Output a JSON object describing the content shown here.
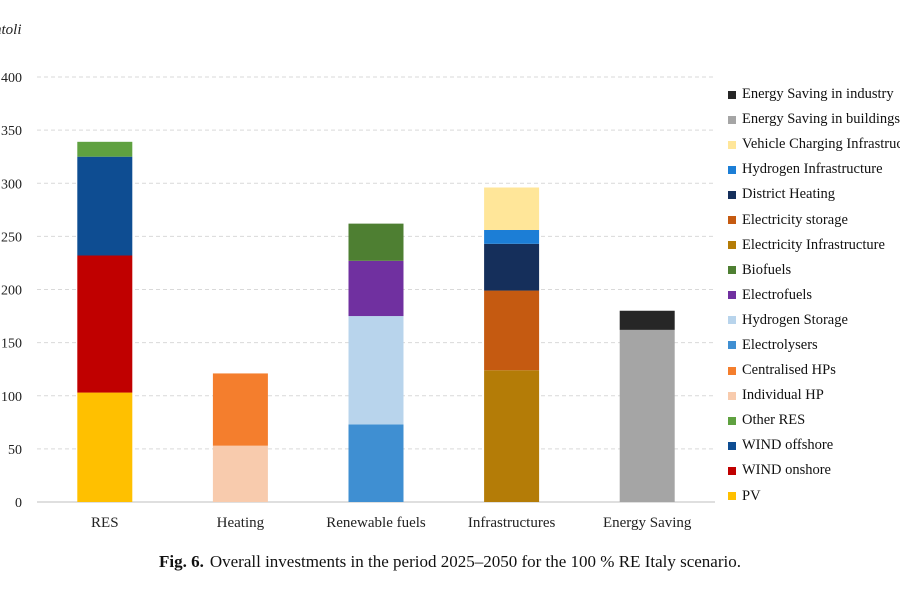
{
  "chart_data": {
    "type": "bar",
    "stacked": true,
    "ylabel": "ntoli",
    "ylim": [
      0,
      400
    ],
    "yticks": [
      0,
      50,
      100,
      150,
      200,
      250,
      300,
      350,
      400
    ],
    "grid": true,
    "legend_position": "right",
    "categories": [
      "RES",
      "Heating",
      "Renewable fuels",
      "Infrastructures",
      "Energy Saving"
    ],
    "series": [
      {
        "name": "PV",
        "color": "#FFC000",
        "values": [
          103,
          0,
          0,
          0,
          0
        ]
      },
      {
        "name": "WIND onshore",
        "color": "#C00000",
        "values": [
          129,
          0,
          0,
          0,
          0
        ]
      },
      {
        "name": "WIND offshore",
        "color": "#0E4D92",
        "values": [
          93,
          0,
          0,
          0,
          0
        ]
      },
      {
        "name": "Other RES",
        "color": "#5FA140",
        "values": [
          14,
          0,
          0,
          0,
          0
        ]
      },
      {
        "name": "Individual HP",
        "color": "#F8CBAD",
        "values": [
          0,
          53,
          0,
          0,
          0
        ]
      },
      {
        "name": "Centralised HPs",
        "color": "#F47E2D",
        "values": [
          0,
          68,
          0,
          0,
          0
        ]
      },
      {
        "name": "Electrolysers",
        "color": "#3F8FD2",
        "values": [
          0,
          0,
          73,
          0,
          0
        ]
      },
      {
        "name": "Hydrogen Storage",
        "color": "#B8D4EC",
        "values": [
          0,
          0,
          102,
          0,
          0
        ]
      },
      {
        "name": "Electrofuels",
        "color": "#7030A0",
        "values": [
          0,
          0,
          52,
          0,
          0
        ]
      },
      {
        "name": "Biofuels",
        "color": "#4E7F32",
        "values": [
          0,
          0,
          35,
          0,
          0
        ]
      },
      {
        "name": "Electricity Infrastructure",
        "color": "#B47C07",
        "values": [
          0,
          0,
          0,
          124,
          0
        ]
      },
      {
        "name": "Electricity storage",
        "color": "#C55A11",
        "values": [
          0,
          0,
          0,
          75,
          0
        ]
      },
      {
        "name": "District Heating",
        "color": "#152F5B",
        "values": [
          0,
          0,
          0,
          44,
          0
        ]
      },
      {
        "name": "Hydrogen Infrastructure",
        "color": "#1C7ED6",
        "values": [
          0,
          0,
          0,
          13,
          0
        ]
      },
      {
        "name": "Vehicle Charging Infrastructure",
        "color": "#FFE699",
        "values": [
          0,
          0,
          0,
          40,
          0
        ]
      },
      {
        "name": "Energy Saving in buildings",
        "color": "#A5A5A5",
        "values": [
          0,
          0,
          0,
          0,
          162
        ]
      },
      {
        "name": "Energy Saving in industry",
        "color": "#262626",
        "values": [
          0,
          0,
          0,
          0,
          18
        ]
      }
    ]
  },
  "legend_items": [
    {
      "label": "Energy Saving in industry",
      "color": "#262626"
    },
    {
      "label": "Energy Saving in buildings",
      "color": "#A5A5A5"
    },
    {
      "label": "Vehicle Charging Infrastructure",
      "color": "#FFE699"
    },
    {
      "label": "Hydrogen Infrastructure",
      "color": "#1C7ED6"
    },
    {
      "label": "District Heating",
      "color": "#152F5B"
    },
    {
      "label": "Electricity storage",
      "color": "#C55A11"
    },
    {
      "label": "Electricity Infrastructure",
      "color": "#B47C07"
    },
    {
      "label": "Biofuels",
      "color": "#4E7F32"
    },
    {
      "label": "Electrofuels",
      "color": "#7030A0"
    },
    {
      "label": "Hydrogen Storage",
      "color": "#B8D4EC"
    },
    {
      "label": "Electrolysers",
      "color": "#3F8FD2"
    },
    {
      "label": "Centralised HPs",
      "color": "#F47E2D"
    },
    {
      "label": "Individual HP",
      "color": "#F8CBAD"
    },
    {
      "label": "Other RES",
      "color": "#5FA140"
    },
    {
      "label": "WIND offshore",
      "color": "#0E4D92"
    },
    {
      "label": "WIND onshore",
      "color": "#C00000"
    },
    {
      "label": "PV",
      "color": "#FFC000"
    }
  ],
  "caption": {
    "label": "Fig. 6.",
    "text": "Overall investments in the period 2025–2050 for the 100 % RE Italy scenario."
  }
}
